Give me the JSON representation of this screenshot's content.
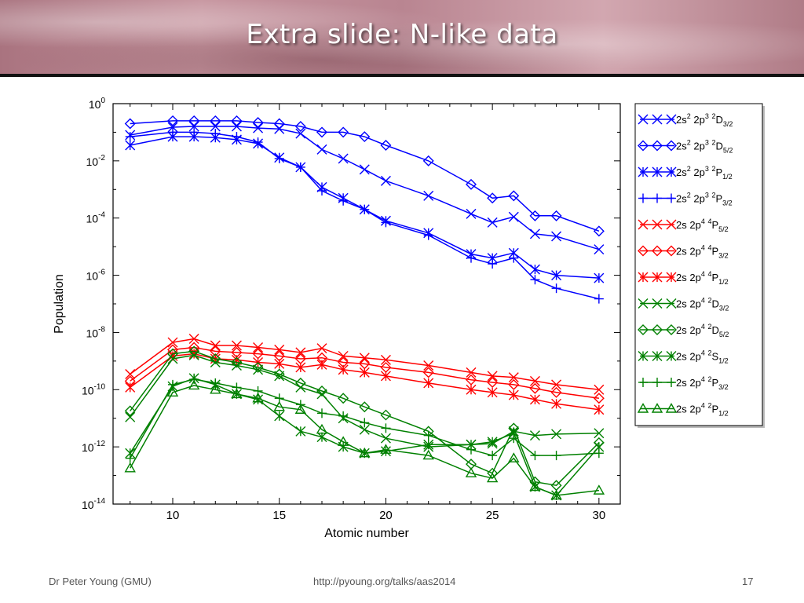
{
  "slide": {
    "title": "Extra slide: N-like data",
    "footer_left": "Dr Peter Young (GMU)",
    "footer_center": "http://pyoung.org/talks/aas2014",
    "footer_right": "17"
  },
  "chart_data": {
    "type": "line",
    "title": "",
    "xlabel": "Atomic number",
    "ylabel": "Population",
    "xlim": [
      7.2,
      31
    ],
    "ylim": [
      1e-14,
      1
    ],
    "yscale": "log",
    "x_ticks": [
      "10",
      "15",
      "20",
      "25",
      "30"
    ],
    "y_ticks": [
      {
        "base": "10",
        "exp": "0"
      },
      {
        "base": "10",
        "exp": "-2"
      },
      {
        "base": "10",
        "exp": "-4"
      },
      {
        "base": "10",
        "exp": "-6"
      },
      {
        "base": "10",
        "exp": "-8"
      },
      {
        "base": "10",
        "exp": "-10"
      },
      {
        "base": "10",
        "exp": "-12"
      },
      {
        "base": "10",
        "exp": "-14"
      }
    ],
    "legend_position": "outside-right",
    "x": [
      8,
      10,
      11,
      12,
      13,
      14,
      15,
      16,
      17,
      18,
      19,
      20,
      22,
      24,
      25,
      26,
      27,
      28,
      30
    ],
    "series": [
      {
        "name": "2s² 2p³ ²D3/2",
        "lbl": {
          "pre": "2s",
          "s1": "2",
          "mid": " 2p",
          "s2": "3",
          "gap": " ",
          "s3": "2",
          "letter": "D",
          "sub": "3/2"
        },
        "color": "#0000ff",
        "marker": "x",
        "values": [
          0.08,
          0.15,
          0.16,
          0.16,
          0.16,
          0.14,
          0.13,
          0.09,
          0.025,
          0.012,
          0.005,
          0.002,
          0.0006,
          0.00014,
          7e-05,
          0.00011,
          2.8e-05,
          2.3e-05,
          8e-06
        ]
      },
      {
        "name": "2s² 2p³ ²D5/2",
        "lbl": {
          "pre": "2s",
          "s1": "2",
          "mid": " 2p",
          "s2": "3",
          "gap": " ",
          "s3": "2",
          "letter": "D",
          "sub": "5/2"
        },
        "color": "#0000ff",
        "marker": "diamond",
        "values": [
          0.2,
          0.25,
          0.25,
          0.25,
          0.25,
          0.22,
          0.2,
          0.16,
          0.1,
          0.1,
          0.07,
          0.035,
          0.01,
          0.0015,
          0.0005,
          0.0006,
          0.00012,
          0.00012,
          3.5e-05
        ]
      },
      {
        "name": "2s² 2p³ ²P1/2",
        "lbl": {
          "pre": "2s",
          "s1": "2",
          "mid": " 2p",
          "s2": "3",
          "gap": " ",
          "s3": "2",
          "letter": "P",
          "sub": "1/2"
        },
        "color": "#0000ff",
        "marker": "star",
        "values": [
          0.035,
          0.07,
          0.07,
          0.065,
          0.055,
          0.04,
          0.013,
          0.006,
          0.0012,
          0.0005,
          0.0002,
          8e-05,
          3e-05,
          5.5e-06,
          4e-06,
          6e-06,
          1.6e-06,
          1e-06,
          8e-07
        ]
      },
      {
        "name": "2s² 2p³ ²P3/2",
        "lbl": {
          "pre": "2s",
          "s1": "2",
          "mid": " 2p",
          "s2": "3",
          "gap": " ",
          "s3": "2",
          "letter": "P",
          "sub": "3/2"
        },
        "color": "#0000ff",
        "marker": "plus",
        "values": [
          0.07,
          0.1,
          0.1,
          0.09,
          0.07,
          0.045,
          0.012,
          0.006,
          0.0009,
          0.0004,
          0.0002,
          7e-05,
          2.5e-05,
          4e-06,
          2.5e-06,
          4e-06,
          7e-07,
          3.5e-07,
          1.5e-07
        ]
      },
      {
        "name": "2s 2p⁴ ⁴P5/2",
        "lbl": {
          "pre": "2s",
          "s1": "",
          "mid": " 2p",
          "s2": "4",
          "gap": " ",
          "s3": "4",
          "letter": "P",
          "sub": "5/2"
        },
        "color": "#ff0000",
        "marker": "x",
        "values": [
          3.5e-10,
          4.5e-09,
          6e-09,
          3.5e-09,
          3.5e-09,
          3e-09,
          2.5e-09,
          2e-09,
          2.8e-09,
          1.5e-09,
          1.3e-09,
          1.1e-09,
          7e-10,
          4e-10,
          3e-10,
          2.7e-10,
          2e-10,
          1.5e-10,
          1e-10
        ]
      },
      {
        "name": "2s 2p⁴ ⁴P3/2",
        "lbl": {
          "pre": "2s",
          "s1": "",
          "mid": " 2p",
          "s2": "4",
          "gap": " ",
          "s3": "4",
          "letter": "P",
          "sub": "3/2"
        },
        "color": "#ff0000",
        "marker": "diamond",
        "values": [
          2e-10,
          2.5e-09,
          3e-09,
          2.2e-09,
          2e-09,
          1.8e-09,
          1.5e-09,
          1.2e-09,
          1.3e-09,
          9e-10,
          8e-10,
          6e-10,
          4e-10,
          2.2e-10,
          1.8e-10,
          1.5e-10,
          1.1e-10,
          8e-11,
          5e-11
        ]
      },
      {
        "name": "2s 2p⁴ ⁴P1/2",
        "lbl": {
          "pre": "2s",
          "s1": "",
          "mid": " 2p",
          "s2": "4",
          "gap": " ",
          "s3": "4",
          "letter": "P",
          "sub": "1/2"
        },
        "color": "#ff0000",
        "marker": "star",
        "values": [
          1.2e-10,
          1.5e-09,
          1.8e-09,
          1.2e-09,
          1.1e-09,
          9e-10,
          8e-10,
          6e-10,
          7.5e-10,
          5e-10,
          4e-10,
          3e-10,
          1.7e-10,
          1e-10,
          8e-11,
          6.5e-11,
          4.5e-11,
          3.2e-11,
          2e-11
        ]
      },
      {
        "name": "2s 2p⁴ ²D3/2",
        "lbl": {
          "pre": "2s",
          "s1": "",
          "mid": " 2p",
          "s2": "4",
          "gap": " ",
          "s3": "2",
          "letter": "D",
          "sub": "3/2"
        },
        "color": "#008000",
        "marker": "x",
        "values": [
          1.1e-11,
          1.2e-09,
          1.6e-09,
          9e-10,
          7e-10,
          5e-10,
          3e-10,
          1.2e-10,
          7e-11,
          1e-11,
          4e-12,
          2e-12,
          1e-12,
          1.2e-12,
          1.3e-12,
          3.5e-12,
          2.5e-12,
          2.8e-12,
          3e-12
        ]
      },
      {
        "name": "2s 2p⁴ ²D5/2",
        "lbl": {
          "pre": "2s",
          "s1": "",
          "mid": " 2p",
          "s2": "4",
          "gap": " ",
          "s3": "2",
          "letter": "D",
          "sub": "5/2"
        },
        "color": "#008000",
        "marker": "diamond",
        "values": [
          1.8e-11,
          1.8e-09,
          2.2e-09,
          1.2e-09,
          9e-10,
          6e-10,
          3.5e-10,
          1.7e-10,
          9e-11,
          5e-11,
          2.5e-11,
          1.3e-11,
          3.5e-12,
          2.5e-13,
          1.2e-13,
          4.5e-12,
          6e-14,
          4.5e-14,
          1.4e-12
        ]
      },
      {
        "name": "2s 2p⁴ ²S1/2",
        "lbl": {
          "pre": "2s",
          "s1": "",
          "mid": " 2p",
          "s2": "4",
          "gap": " ",
          "s3": "2",
          "letter": "S",
          "sub": "1/2"
        },
        "color": "#008000",
        "marker": "star",
        "values": [
          6e-13,
          1.3e-10,
          2.5e-10,
          1.5e-10,
          7e-11,
          4.5e-11,
          1.2e-11,
          3.5e-12,
          2.2e-12,
          1e-12,
          6e-13,
          7e-13,
          1.2e-12,
          1.2e-12,
          1.5e-12,
          3e-12,
          4e-14,
          2e-14,
          1e-12
        ]
      },
      {
        "name": "2s 2p⁴ ²P3/2",
        "lbl": {
          "pre": "2s",
          "s1": "",
          "mid": " 2p",
          "s2": "4",
          "gap": " ",
          "s3": "2",
          "letter": "P",
          "sub": "3/2"
        },
        "color": "#008000",
        "marker": "plus",
        "values": [
          4e-13,
          1.5e-10,
          2.3e-10,
          1.7e-10,
          1.2e-10,
          9e-11,
          5e-11,
          3e-11,
          1.5e-11,
          1.2e-11,
          7e-12,
          4.5e-12,
          2.5e-12,
          8e-13,
          5e-13,
          2e-12,
          5e-13,
          5e-13,
          6e-13
        ]
      },
      {
        "name": "2s 2p⁴ ²P1/2",
        "lbl": {
          "pre": "2s",
          "s1": "",
          "mid": " 2p",
          "s2": "4",
          "gap": " ",
          "s3": "2",
          "letter": "P",
          "sub": "1/2"
        },
        "color": "#008000",
        "marker": "triangle",
        "values": [
          1.8e-13,
          8e-11,
          1.4e-10,
          1e-10,
          7e-11,
          5e-11,
          2.5e-11,
          2e-11,
          4e-12,
          1.5e-12,
          6e-13,
          8e-13,
          5e-13,
          1.2e-13,
          8e-14,
          4e-13,
          4e-14,
          2e-14,
          3e-14
        ]
      }
    ]
  }
}
